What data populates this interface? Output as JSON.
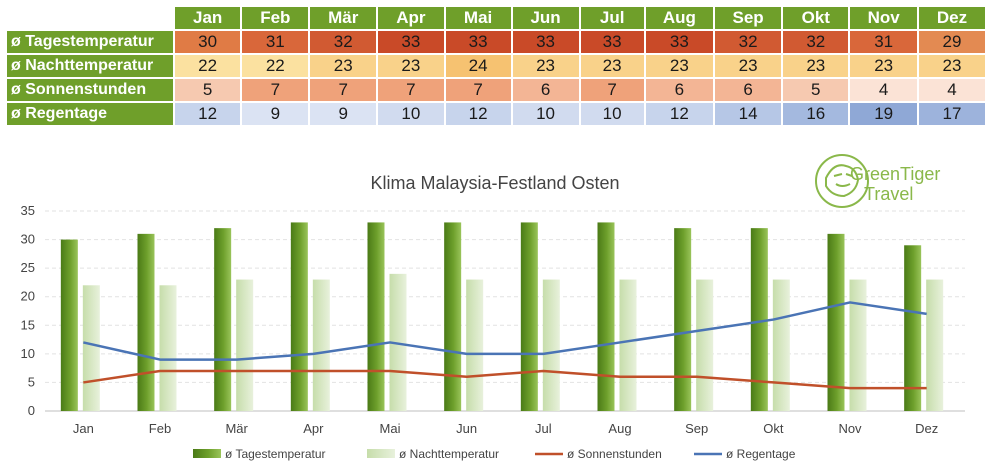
{
  "table": {
    "months": [
      "Jan",
      "Feb",
      "Mär",
      "Apr",
      "Mai",
      "Jun",
      "Jul",
      "Aug",
      "Sep",
      "Okt",
      "Nov",
      "Dez"
    ],
    "rows": [
      {
        "label": "ø Tagestemperatur",
        "values": [
          30,
          31,
          32,
          33,
          33,
          33,
          33,
          33,
          32,
          32,
          31,
          29
        ],
        "colors": [
          "#e07b45",
          "#d9673a",
          "#d15a32",
          "#c94a28",
          "#c94a28",
          "#c94a28",
          "#c94a28",
          "#c94a28",
          "#d15a32",
          "#d15a32",
          "#d9673a",
          "#e38a52"
        ]
      },
      {
        "label": "ø Nachttemperatur",
        "values": [
          22,
          22,
          23,
          23,
          24,
          23,
          23,
          23,
          23,
          23,
          23,
          23
        ],
        "colors": [
          "#fbe1a0",
          "#fbe1a0",
          "#f9d28a",
          "#f9d28a",
          "#f6c271",
          "#f9d28a",
          "#f9d28a",
          "#f9d28a",
          "#f9d28a",
          "#f9d28a",
          "#f9d28a",
          "#f9d28a"
        ]
      },
      {
        "label": "ø Sonnenstunden",
        "values": [
          5,
          7,
          7,
          7,
          7,
          6,
          7,
          6,
          6,
          5,
          4,
          4
        ],
        "colors": [
          "#f6c9b0",
          "#efa27a",
          "#efa27a",
          "#efa27a",
          "#efa27a",
          "#f3b595",
          "#efa27a",
          "#f3b595",
          "#f3b595",
          "#f6c9b0",
          "#fbe3d6",
          "#fbe3d6"
        ]
      },
      {
        "label": "ø Regentage",
        "values": [
          12,
          9,
          9,
          10,
          12,
          10,
          10,
          12,
          14,
          16,
          19,
          17
        ],
        "colors": [
          "#c7d4ec",
          "#dbe3f3",
          "#dbe3f3",
          "#d1dbef",
          "#c7d4ec",
          "#d1dbef",
          "#d1dbef",
          "#c7d4ec",
          "#b6c7e6",
          "#a4b9df",
          "#8fa8d6",
          "#9db3dc"
        ]
      }
    ]
  },
  "logo": {
    "line1": "GreenTiger",
    "line2": "Travel"
  },
  "chart_data": {
    "type": "bar",
    "title": "Klima Malaysia-Festland Osten",
    "categories": [
      "Jan",
      "Feb",
      "Mär",
      "Apr",
      "Mai",
      "Jun",
      "Jul",
      "Aug",
      "Sep",
      "Okt",
      "Nov",
      "Dez"
    ],
    "ylim": [
      0,
      35
    ],
    "yticks": [
      0,
      5,
      10,
      15,
      20,
      25,
      30,
      35
    ],
    "grid": true,
    "legend_position": "bottom",
    "series": [
      {
        "name": "ø Tagestemperatur",
        "kind": "bar",
        "color": "#5b8c1e",
        "values": [
          30,
          31,
          32,
          33,
          33,
          33,
          33,
          33,
          32,
          32,
          31,
          29
        ]
      },
      {
        "name": "ø Nachttemperatur",
        "kind": "bar",
        "color": "#d6e7c0",
        "values": [
          22,
          22,
          23,
          23,
          24,
          23,
          23,
          23,
          23,
          23,
          23,
          23
        ]
      },
      {
        "name": "ø Sonnenstunden",
        "kind": "line",
        "color": "#c0502a",
        "values": [
          5,
          7,
          7,
          7,
          7,
          6,
          7,
          6,
          6,
          5,
          4,
          4
        ]
      },
      {
        "name": "ø Regentage",
        "kind": "line",
        "color": "#4a74b5",
        "values": [
          12,
          9,
          9,
          10,
          12,
          10,
          10,
          12,
          14,
          16,
          19,
          17
        ]
      }
    ]
  }
}
